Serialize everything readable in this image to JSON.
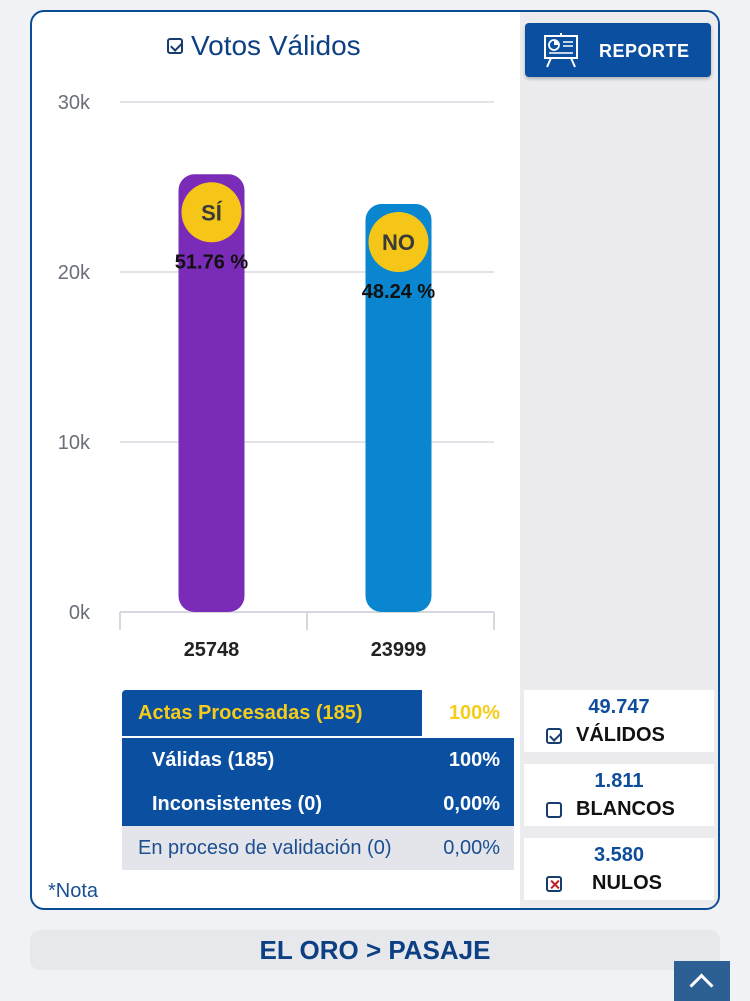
{
  "header": {
    "title": "Votos Válidos",
    "report_label": "REPORTE"
  },
  "chart_data": {
    "type": "bar",
    "categories": [
      "SÍ",
      "NO"
    ],
    "values": [
      25748,
      23999
    ],
    "value_labels": [
      "25748",
      "23999"
    ],
    "percent_labels": [
      "51.76 %",
      "48.24 %"
    ],
    "colors": [
      "#7a2bb8",
      "#0a86d0"
    ],
    "badge_color": "#f5c518",
    "title": "Votos Válidos",
    "yticks": [
      "0k",
      "10k",
      "20k",
      "30k"
    ],
    "ylim": [
      0,
      30000
    ],
    "grid": true
  },
  "actas": {
    "header": {
      "label": "Actas Procesadas (185)",
      "pct": "100%"
    },
    "rows": [
      {
        "label": "Válidas (185)",
        "pct": "100%"
      },
      {
        "label": "Inconsistentes (0)",
        "pct": "0,00%"
      },
      {
        "label": "En proceso de validación (0)",
        "pct": "0,00%"
      }
    ]
  },
  "note": "*Nota",
  "totals": [
    {
      "value": "49.747",
      "label": "VÁLIDOS",
      "state": "checked"
    },
    {
      "value": "1.811",
      "label": "BLANCOS",
      "state": "unchecked"
    },
    {
      "value": "3.580",
      "label": "NULOS",
      "state": "x"
    }
  ],
  "breadcrumb": "EL ORO > PASAJE",
  "colors": {
    "primary": "#0a4fa0",
    "accent": "#f5cc1a"
  }
}
